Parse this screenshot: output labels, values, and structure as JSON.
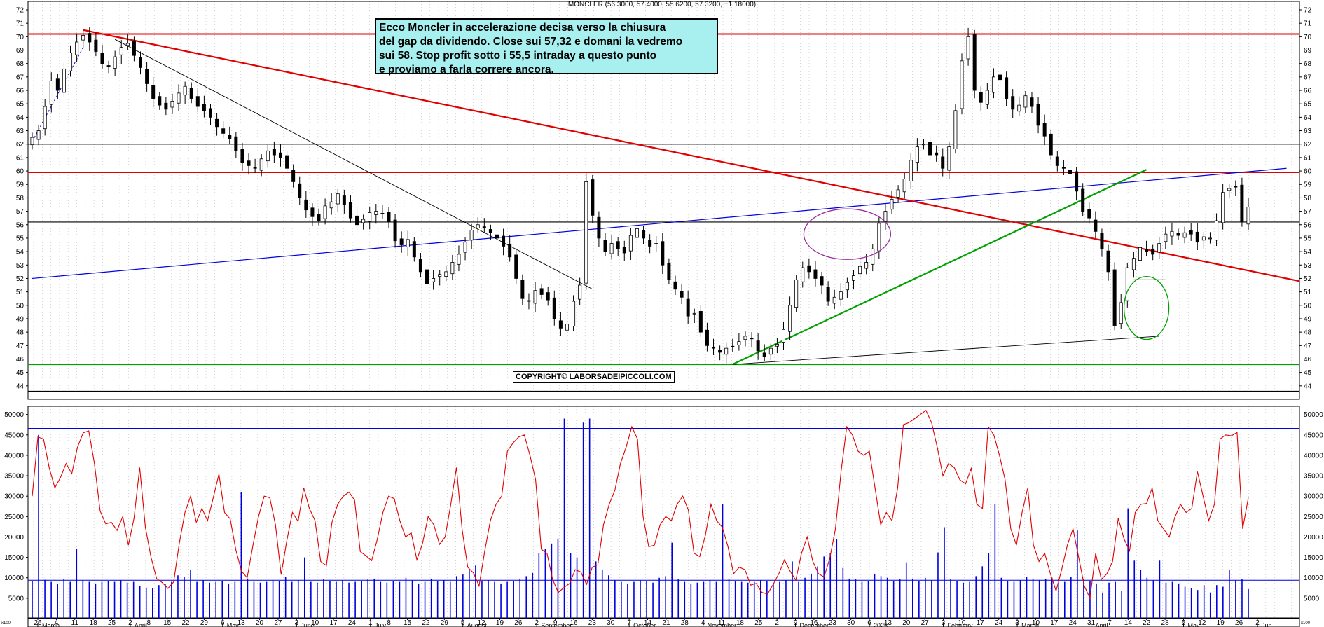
{
  "header": "MONCLER (56.3000, 57.4000, 55.6200, 57.3200, +1.18000)",
  "note_lines": [
    "Ecco Moncler in accelerazione decisa verso la chiusura",
    "del gap da dividendo. Close sui 57,32 e domani la vedremo",
    "sui 58. Stop profit sotto i 55,5 intraday a questo punto",
    "e proviamo a farla correre ancora."
  ],
  "copyright": "COPYRIGHT© LABORSADEIPICCOLI.COM",
  "volume_scale_label": "x100",
  "colors": {
    "candle": "#000000",
    "resistance": "#e00000",
    "support": "#00a000",
    "trend_blue": "#0000e0",
    "oscillator": "#e00000",
    "volume": "#0000e0",
    "ellipse_purple": "#9a2aa0",
    "ellipse_green": "#00a000"
  },
  "chart_data": [
    {
      "type": "candlestick",
      "title": "MONCLER (56.3000, 57.4000, 55.6200, 57.3200, +1.18000)",
      "ylim": [
        43,
        72
      ],
      "y_ticks": [
        44,
        45,
        46,
        47,
        48,
        49,
        50,
        51,
        52,
        53,
        54,
        55,
        56,
        57,
        58,
        59,
        60,
        61,
        62,
        63,
        64,
        65,
        66,
        67,
        68,
        69,
        70,
        71,
        72
      ],
      "x_day_ticks": [
        "26",
        "4",
        "11",
        "18",
        "25",
        "2",
        "8",
        "15",
        "22",
        "29",
        "6",
        "13",
        "20",
        "27",
        "3",
        "10",
        "17",
        "24",
        "1",
        "8",
        "15",
        "22",
        "29",
        "5",
        "12",
        "19",
        "26",
        "2",
        "9",
        "16",
        "23",
        "30",
        "7",
        "14",
        "21",
        "28",
        "4",
        "11",
        "18",
        "25",
        "2",
        "9",
        "16",
        "23",
        "30",
        "6",
        "13",
        "20",
        "27",
        "3",
        "10",
        "17",
        "24",
        "3",
        "10",
        "17",
        "24",
        "31",
        "7",
        "14",
        "22",
        "28",
        "5",
        "12",
        "19",
        "26",
        "2"
      ],
      "x_month_labels": [
        "March",
        "April",
        "May",
        "June",
        "July",
        "August",
        "September",
        "October",
        "November",
        "December",
        "2025",
        "February",
        "March",
        "April",
        "May",
        "Jun"
      ],
      "last_bar": {
        "open": 56.3,
        "high": 57.4,
        "low": 55.62,
        "close": 57.32,
        "change": 1.18
      },
      "horizontal_levels": [
        {
          "value": 70.2,
          "color": "red"
        },
        {
          "value": 62.0,
          "color": "black"
        },
        {
          "value": 59.9,
          "color": "red"
        },
        {
          "value": 56.2,
          "color": "black"
        },
        {
          "value": 45.6,
          "color": "green"
        },
        {
          "value": 43.6,
          "color": "black"
        }
      ],
      "series_close": [
        62.5,
        63.0,
        64.8,
        66.7,
        66.0,
        67.6,
        68.8,
        69.6,
        70.1,
        69.6,
        68.9,
        68.0,
        67.8,
        68.5,
        69.2,
        69.5,
        68.6,
        67.7,
        66.5,
        65.4,
        64.9,
        64.6,
        65.2,
        65.8,
        66.3,
        65.4,
        64.8,
        64.5,
        64.0,
        63.3,
        62.8,
        62.4,
        61.5,
        60.6,
        60.4,
        60.2,
        60.9,
        61.5,
        61.2,
        61.0,
        60.2,
        59.2,
        58.0,
        57.1,
        56.6,
        56.3,
        57.4,
        57.7,
        58.3,
        57.5,
        56.5,
        56.0,
        56.4,
        56.9,
        57.0,
        56.8,
        56.2,
        54.8,
        54.5,
        54.9,
        53.6,
        52.5,
        51.6,
        52.0,
        52.3,
        52.5,
        53.2,
        53.8,
        54.7,
        55.6,
        56.0,
        55.8,
        55.4,
        55.0,
        54.4,
        53.6,
        52.0,
        50.5,
        50.3,
        51.1,
        50.8,
        50.4,
        49.0,
        48.3,
        48.6,
        50.3,
        51.5,
        59.2,
        56.7,
        55.0,
        54.0,
        54.6,
        54.2,
        53.9,
        55.2,
        55.7,
        55.0,
        54.4,
        54.6,
        53.0,
        51.9,
        51.2,
        50.6,
        49.2,
        49.4,
        48.0,
        47.0,
        46.8,
        46.5,
        46.8,
        46.9,
        47.3,
        47.7,
        47.5,
        46.6,
        46.2,
        46.8,
        47.1,
        48.2,
        50.0,
        51.9,
        52.8,
        52.5,
        52.0,
        51.5,
        50.3,
        50.6,
        51.0,
        51.7,
        52.2,
        52.9,
        53.2,
        54.2,
        56.1,
        57.0,
        57.9,
        58.6,
        59.4,
        60.8,
        61.8,
        62.0,
        61.2,
        61.2,
        60.2,
        61.8,
        64.5,
        68.2,
        70.0,
        66.0,
        65.1,
        66.0,
        67.0,
        66.8,
        65.4,
        64.6,
        64.9,
        65.6,
        64.8,
        63.4,
        62.6,
        61.2,
        60.4,
        60.2,
        59.8,
        58.5,
        57.0,
        56.5,
        55.5,
        54.2,
        52.5,
        48.5,
        50.2,
        52.8,
        53.5,
        54.3,
        54.0,
        53.8,
        54.6,
        55.3,
        55.5,
        55.2,
        55.4,
        55.3,
        54.7,
        55.1,
        55.0,
        56.3,
        58.4,
        58.7,
        58.8,
        56.2,
        57.32
      ],
      "series_volume_x100": [
        9200,
        45000,
        9500,
        9000,
        8500,
        9800,
        9000,
        17000,
        9400,
        9000,
        8600,
        9000,
        9200,
        9000,
        9400,
        8800,
        9000,
        8000,
        7600,
        7400,
        8200,
        8400,
        9000,
        10600,
        10200,
        12000,
        9000,
        9400,
        8800,
        9000,
        9200,
        8600,
        9000,
        31000,
        9800,
        9000,
        8800,
        9000,
        9400,
        9200,
        10200,
        9000,
        9400,
        15000,
        9000,
        8800,
        9600,
        9200,
        9000,
        9400,
        8800,
        9000,
        9200,
        9600,
        9800,
        9000,
        8800,
        9200,
        9000,
        10000,
        9400,
        8600,
        9000,
        9800,
        9200,
        9400,
        9000,
        10400,
        10800,
        12000,
        13000,
        9200,
        9400,
        9000,
        8600,
        9000,
        9200,
        9800,
        10400,
        11200,
        16000,
        17000,
        18400,
        19600,
        49000,
        16000,
        15000,
        48000,
        49000,
        14000,
        12000,
        10600,
        9400,
        9000,
        8600,
        9000,
        9400,
        9200,
        8800,
        10000,
        10400,
        18600,
        9600,
        9000,
        8600,
        8800,
        9000,
        9400,
        9000,
        28000,
        9600,
        9200,
        9000,
        8800,
        9000,
        9400,
        9200,
        8600,
        9000,
        9400,
        14000,
        9000,
        10000,
        11000,
        12800,
        15200,
        16000,
        19400,
        12400,
        9800,
        9600,
        9000,
        9200,
        11000,
        10400,
        10000,
        9200,
        9600,
        13800,
        9800,
        9200,
        10000,
        9400,
        16200,
        22400,
        9600,
        9200,
        8800,
        9000,
        10400,
        12800,
        16000,
        28000,
        10000,
        9200,
        9000,
        9400,
        10200,
        9800,
        9400,
        9800,
        10000,
        9600,
        9000,
        10200,
        21600,
        9800,
        9200,
        8600,
        6400,
        8800,
        9000,
        6800,
        27000,
        14200,
        12000,
        10000,
        9400,
        14200,
        8800,
        9000,
        8600,
        7800,
        7400,
        7000,
        8200,
        6400,
        8200,
        7800,
        12000,
        9400,
        9600,
        7200
      ]
    },
    {
      "type": "line",
      "ylim": [
        0,
        52000
      ],
      "y_ticks": [
        5000,
        10000,
        15000,
        20000,
        25000,
        30000,
        35000,
        40000,
        45000,
        50000
      ],
      "horizontal_levels": [
        46600,
        9400
      ],
      "values": [
        30000,
        44500,
        44000,
        37000,
        32000,
        34600,
        38000,
        35500,
        42000,
        45500,
        46000,
        38000,
        26400,
        23200,
        23600,
        21600,
        25000,
        18000,
        24600,
        37000,
        22400,
        15000,
        9800,
        8800,
        7400,
        9000,
        18400,
        26000,
        30000,
        23600,
        27000,
        24000,
        29600,
        35400,
        26000,
        24400,
        16800,
        11600,
        10000,
        17800,
        25000,
        30000,
        29600,
        23000,
        10800,
        19000,
        26000,
        23800,
        32000,
        27000,
        24000,
        14000,
        13000,
        23600,
        28000,
        30000,
        31000,
        29000,
        16400,
        15400,
        14200,
        19400,
        26000,
        30000,
        29400,
        24000,
        20000,
        21000,
        14400,
        18400,
        25000,
        23000,
        18200,
        20000,
        28000,
        37000,
        21800,
        12600,
        11200,
        8000,
        16600,
        24000,
        28000,
        30000,
        41000,
        43000,
        44500,
        45000,
        40000,
        34000,
        17000,
        16000,
        9600,
        6400,
        7600,
        8600,
        12000,
        11400,
        8400,
        12600,
        13200,
        23000,
        28000,
        31400,
        38000,
        42000,
        47000,
        44000,
        25000,
        17600,
        18000,
        23000,
        25000,
        24000,
        28000,
        30000,
        26600,
        16000,
        15200,
        20400,
        28000,
        24000,
        22400,
        17600,
        11000,
        12600,
        12000,
        8200,
        8600,
        6400,
        6000,
        8400,
        11000,
        14400,
        11600,
        9400,
        16000,
        20000,
        14000,
        11000,
        10200,
        14800,
        22000,
        36000,
        47000,
        45000,
        41000,
        40000,
        41000,
        32000,
        23000,
        26000,
        24000,
        32000,
        47500,
        48000,
        49000,
        50000,
        51000,
        48000,
        42000,
        35000,
        38000,
        37000,
        34000,
        33000,
        36800,
        28000,
        27000,
        47000,
        45000,
        40000,
        34000,
        22000,
        18000,
        26000,
        32000,
        18000,
        14000,
        16000,
        11000,
        6800,
        12000,
        18000,
        22000,
        15000,
        8000,
        5000,
        16000,
        9600,
        11000,
        14000,
        24600,
        19600,
        16600,
        26000,
        28000,
        28200,
        32000,
        24000,
        22000,
        20000,
        24800,
        28000,
        26000,
        27000,
        36000,
        30000,
        24000,
        28000,
        44000,
        45000,
        44800,
        45600,
        22000,
        29600
      ]
    }
  ]
}
